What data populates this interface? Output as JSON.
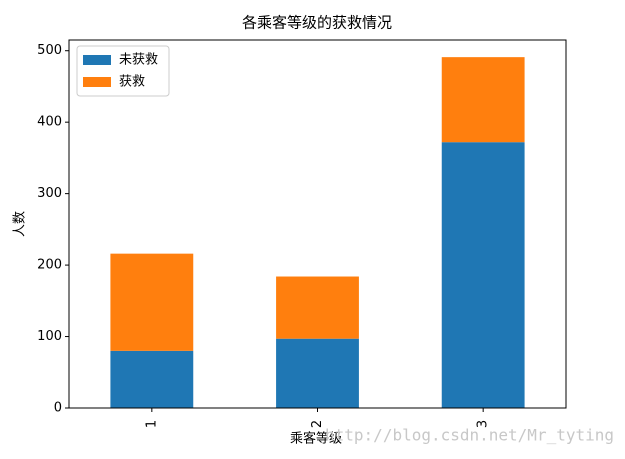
{
  "chart_data": {
    "type": "bar",
    "stacked": true,
    "title": "各乘客等级的获救情况",
    "x_label": "乘客等级",
    "y_label": "人数",
    "categories": [
      "1",
      "2",
      "3"
    ],
    "series": [
      {
        "name": "未获救",
        "color": "#1f77b4",
        "values": [
          80,
          97,
          372
        ]
      },
      {
        "name": "获救",
        "color": "#ff7f0e",
        "values": [
          136,
          87,
          119
        ]
      }
    ],
    "ylim": [
      0,
      515
    ],
    "yticks": [
      0,
      100,
      200,
      300,
      400,
      500
    ],
    "grid": false,
    "legend": "upper left",
    "watermark": "http://blog.csdn.net/Mr_tyting"
  }
}
